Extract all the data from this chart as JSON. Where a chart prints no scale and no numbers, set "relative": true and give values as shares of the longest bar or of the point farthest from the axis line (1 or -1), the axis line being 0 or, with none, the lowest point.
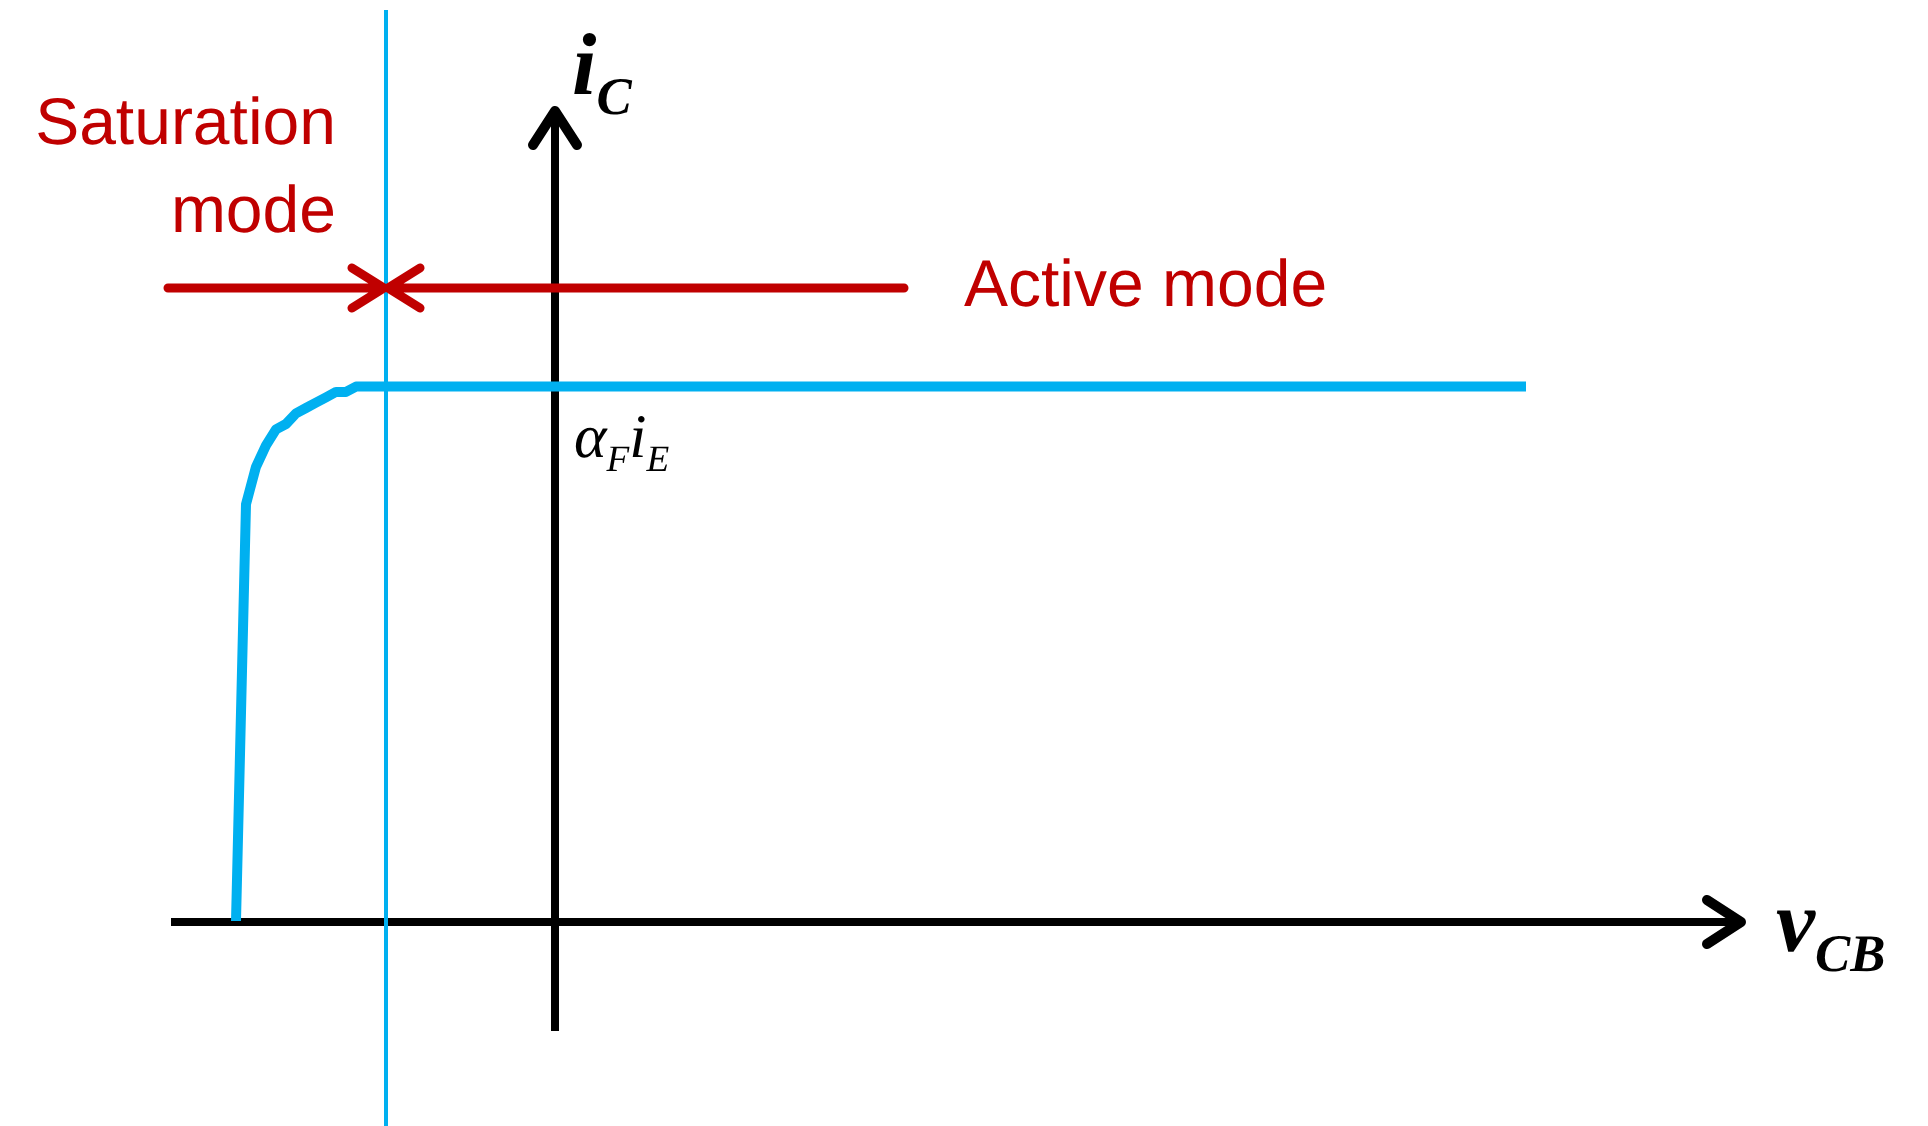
{
  "chart_data": {
    "type": "line",
    "relative": true,
    "xlabel": "v$_{CB}$",
    "ylabel": "i$_{C}$",
    "categories": [
      null,
      null,
      null,
      null,
      null,
      null,
      null,
      null,
      null,
      null,
      null,
      null,
      null,
      null,
      null,
      null,
      null,
      null,
      null,
      null,
      null,
      null,
      null,
      null,
      null,
      null,
      null,
      null,
      null,
      null,
      null,
      null,
      null,
      null,
      null,
      null,
      null,
      null,
      null,
      null,
      null,
      null,
      null,
      null,
      null,
      null,
      null,
      null,
      null,
      null,
      null,
      null,
      null,
      null,
      null,
      null,
      null,
      null,
      null,
      null,
      null,
      null,
      null,
      null,
      null,
      null,
      null,
      null,
      null,
      null,
      null,
      null,
      null,
      null,
      null,
      null,
      null,
      null,
      null,
      null,
      null,
      null,
      null,
      null,
      null,
      null,
      null,
      null,
      null,
      null,
      null,
      null,
      null,
      null,
      null,
      null,
      null,
      null,
      null,
      null,
      null,
      null,
      null,
      null,
      null,
      null,
      null,
      null,
      null,
      null,
      null,
      null,
      null,
      null,
      null,
      null,
      null,
      null,
      null,
      null,
      null,
      null,
      null,
      null,
      null,
      null,
      null,
      null,
      null,
      null
    ],
    "series": [
      {
        "color": "#00b0f0",
        "values": [
          0,
          0.78,
          0.85,
          0.89,
          0.92,
          0.93,
          0.95,
          0.96,
          0.97,
          0.98,
          0.99,
          0.99,
          1,
          1,
          1,
          1,
          1,
          1,
          1,
          1,
          1,
          1,
          1,
          1,
          1,
          1,
          1,
          1,
          1,
          1,
          1,
          1,
          1,
          1,
          1,
          1,
          1,
          1,
          1,
          1,
          1,
          1,
          1,
          1,
          1,
          1,
          1,
          1,
          1,
          1,
          1,
          1,
          1,
          1,
          1,
          1,
          1,
          1,
          1,
          1,
          1,
          1,
          1,
          1,
          1,
          1,
          1,
          1,
          1,
          1,
          1,
          1,
          1,
          1,
          1,
          1,
          1,
          1,
          1,
          1,
          1,
          1,
          1,
          1,
          1,
          1,
          1,
          1,
          1,
          1,
          1,
          1,
          1,
          1,
          1,
          1,
          1,
          1,
          1,
          1,
          1,
          1,
          1,
          1,
          1,
          1,
          1,
          1,
          1,
          1,
          1,
          1,
          1,
          1,
          1,
          1,
          1,
          1,
          1,
          1,
          1,
          1,
          1,
          1,
          1,
          1,
          1,
          1,
          1,
          1
        ]
      }
    ],
    "annotations": [
      "Saturation mode",
      "Active mode",
      {
        "text": "α$_{F}$i$_{E}$",
        "y": 1
      }
    ],
    "line_style": "solid"
  }
}
